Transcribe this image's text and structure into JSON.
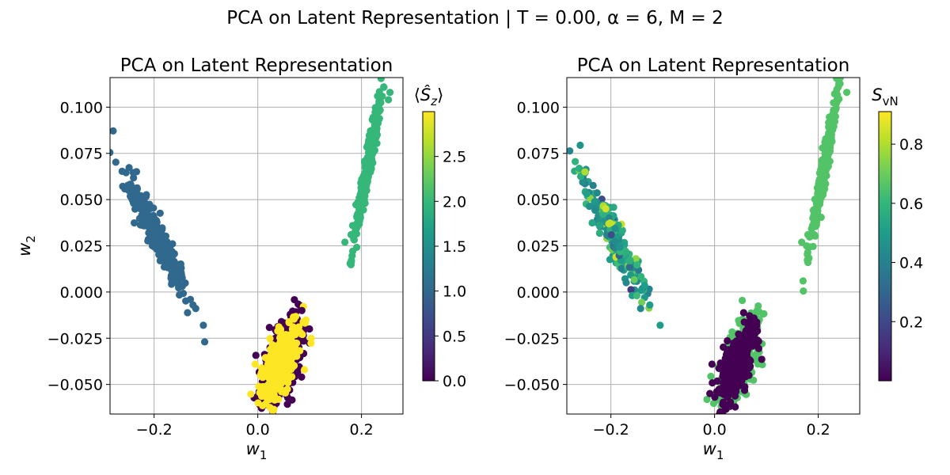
{
  "suptitle": "PCA on Latent Representation | T = 0.00, α = 6, M = 2",
  "chart_data": [
    {
      "type": "scatter",
      "title": "PCA on Latent Representation",
      "xlabel": "w1",
      "ylabel": "w2",
      "xlim": [
        -0.285,
        0.28
      ],
      "ylim": [
        -0.066,
        0.116
      ],
      "xticks": [
        -0.2,
        0.0,
        0.2
      ],
      "yticks": [
        -0.05,
        -0.025,
        0.0,
        0.025,
        0.05,
        0.075,
        0.1
      ],
      "xtick_labels": [
        "−0.2",
        "0.0",
        "0.2"
      ],
      "ytick_labels": [
        "−0.050",
        "−0.025",
        "0.000",
        "0.025",
        "0.050",
        "0.075",
        "0.100"
      ],
      "grid": true,
      "colormap": "viridis",
      "colorbar": {
        "label": "⟨Ŝz⟩",
        "range": [
          0.0,
          3.0
        ],
        "ticks": [
          0.0,
          0.5,
          1.0,
          1.5,
          2.0,
          2.5
        ],
        "tick_labels": [
          "0.0",
          "0.5",
          "1.0",
          "1.5",
          "2.0",
          "2.5"
        ]
      },
      "clusters": [
        {
          "center": [
            0.045,
            -0.038
          ],
          "count": 320,
          "color_value": 0.0,
          "spread": [
            0.022,
            0.009
          ],
          "rot": 0.45
        },
        {
          "center": [
            0.043,
            -0.039
          ],
          "count": 380,
          "color_value": 3.0,
          "spread": [
            0.02,
            0.0075
          ],
          "rot": 0.45
        },
        {
          "center": [
            -0.195,
            0.03
          ],
          "count": 300,
          "color_value": 1.0,
          "spread": [
            0.032,
            0.0045
          ],
          "rot": -0.48
        },
        {
          "center": [
            0.212,
            0.068
          ],
          "count": 300,
          "color_value": 2.0,
          "spread": [
            0.025,
            0.003
          ],
          "rot": 1.0
        }
      ],
      "outliers": [
        {
          "x": -0.105,
          "y": -0.018,
          "v": 1.0
        },
        {
          "x": -0.125,
          "y": -0.007,
          "v": 1.0
        },
        {
          "x": -0.13,
          "y": -0.004,
          "v": 1.0
        },
        {
          "x": 0.168,
          "y": 0.027,
          "v": 2.0
        },
        {
          "x": 0.18,
          "y": 0.031,
          "v": 2.0
        },
        {
          "x": 0.255,
          "y": 0.108,
          "v": 2.0
        },
        {
          "x": 0.252,
          "y": 0.104,
          "v": 2.0
        },
        {
          "x": -0.005,
          "y": -0.039,
          "v": 3.0
        },
        {
          "x": 0.09,
          "y": -0.042,
          "v": 3.0
        },
        {
          "x": 0.085,
          "y": -0.01,
          "v": 0.0
        },
        {
          "x": 0.04,
          "y": -0.058,
          "v": 3.0
        }
      ]
    },
    {
      "type": "scatter",
      "title": "PCA on Latent Representation",
      "xlabel": "w1",
      "ylabel": "",
      "xlim": [
        -0.285,
        0.28
      ],
      "ylim": [
        -0.066,
        0.116
      ],
      "xticks": [
        -0.2,
        0.0,
        0.2
      ],
      "yticks": [
        -0.05,
        -0.025,
        0.0,
        0.025,
        0.05,
        0.075,
        0.1
      ],
      "xtick_labels": [
        "−0.2",
        "0.0",
        "0.2"
      ],
      "ytick_labels": [
        "−0.050",
        "−0.025",
        "0.000",
        "0.025",
        "0.050",
        "0.075",
        "0.100"
      ],
      "grid": true,
      "colormap": "viridis",
      "colorbar": {
        "label": "SvN",
        "range": [
          0.0,
          0.91
        ],
        "ticks": [
          0.2,
          0.4,
          0.6,
          0.8
        ],
        "tick_labels": [
          "0.2",
          "0.4",
          "0.6",
          "0.8"
        ]
      },
      "clusters": [
        {
          "center": [
            0.045,
            -0.038
          ],
          "count": 300,
          "color_value": 0.66,
          "spread": [
            0.022,
            0.009
          ],
          "rot": 0.45
        },
        {
          "center": [
            0.043,
            -0.04
          ],
          "count": 380,
          "color_value": 0.0,
          "spread": [
            0.019,
            0.007
          ],
          "rot": 0.45
        },
        {
          "center": [
            -0.195,
            0.03
          ],
          "count": 300,
          "color_value": 0.5,
          "spread": [
            0.032,
            0.0045
          ],
          "rot": -0.48,
          "value_jitter": 0.35
        },
        {
          "center": [
            0.212,
            0.068
          ],
          "count": 300,
          "color_value": 0.66,
          "spread": [
            0.025,
            0.003
          ],
          "rot": 1.0
        }
      ],
      "outliers": [
        {
          "x": -0.105,
          "y": -0.018,
          "v": 0.5
        },
        {
          "x": -0.125,
          "y": -0.007,
          "v": 0.5
        },
        {
          "x": -0.15,
          "y": -0.002,
          "v": 0.62
        },
        {
          "x": 0.168,
          "y": 0.027,
          "v": 0.66
        },
        {
          "x": 0.18,
          "y": 0.031,
          "v": 0.66
        },
        {
          "x": 0.255,
          "y": 0.108,
          "v": 0.66
        },
        {
          "x": -0.25,
          "y": 0.065,
          "v": 0.8
        },
        {
          "x": -0.21,
          "y": 0.045,
          "v": 0.85
        },
        {
          "x": 0.082,
          "y": -0.01,
          "v": 0.66
        },
        {
          "x": -0.005,
          "y": -0.039,
          "v": 0.0
        }
      ]
    }
  ]
}
